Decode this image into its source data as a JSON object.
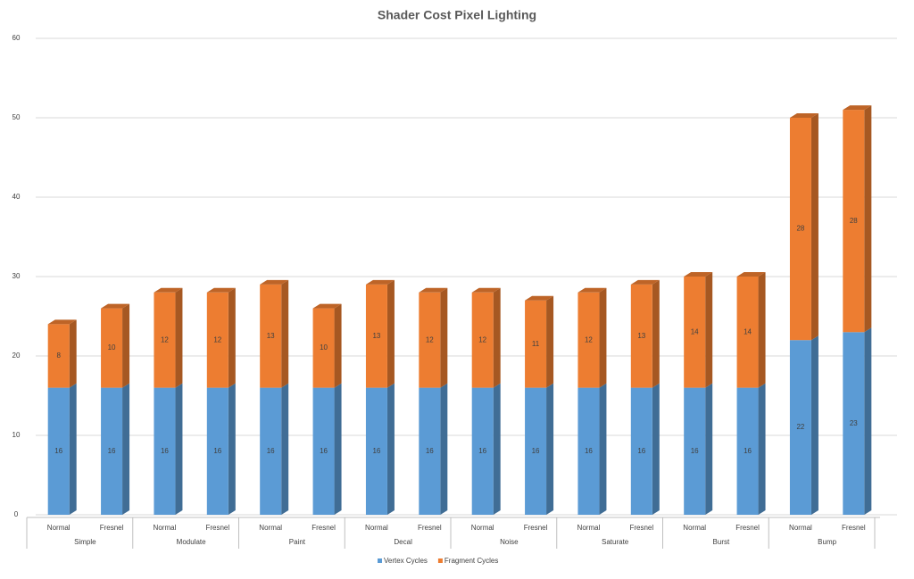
{
  "chart_data": {
    "type": "bar3d_stacked",
    "title": "Shader Cost Pixel Lighting",
    "categories": [
      "Normal",
      "Fresnel",
      "Normal",
      "Fresnel",
      "Normal",
      "Fresnel",
      "Normal",
      "Fresnel",
      "Normal",
      "Fresnel",
      "Normal",
      "Fresnel",
      "Normal",
      "Fresnel",
      "Normal",
      "Fresnel"
    ],
    "groups": [
      "Simple",
      "Modulate",
      "Paint",
      "Decal",
      "Noise",
      "Saturate",
      "Burst",
      "Bump"
    ],
    "series": [
      {
        "name": "Vertex Cycles",
        "color": "#5b9bd5",
        "values": [
          16,
          16,
          16,
          16,
          16,
          16,
          16,
          16,
          16,
          16,
          16,
          16,
          16,
          16,
          22,
          23
        ]
      },
      {
        "name": "Fragment Cycles",
        "color": "#ed7d31",
        "values": [
          8,
          10,
          12,
          12,
          13,
          10,
          13,
          12,
          12,
          11,
          12,
          13,
          14,
          14,
          28,
          28
        ]
      }
    ],
    "ylim": [
      0,
      60
    ],
    "yticks": [
      0,
      10,
      20,
      30,
      40,
      50,
      60
    ],
    "grid": true,
    "legend": "bottom"
  }
}
